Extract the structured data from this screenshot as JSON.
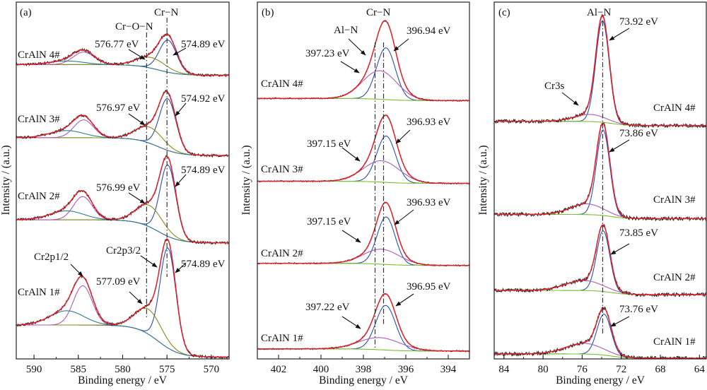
{
  "chart_data": [
    {
      "type": "line",
      "panel_label": "(a)",
      "xlabel": "Binding energy / eV",
      "ylabel": "Intensity / (a.u.)",
      "xlim": [
        592,
        568
      ],
      "x_reversed": true,
      "xticks": [
        590,
        585,
        580,
        575,
        570
      ],
      "xtick_labels": [
        "590",
        "585",
        "580",
        "575",
        "570"
      ],
      "minor_xtick_step": 2.5,
      "ylim": [
        0,
        100
      ],
      "grid": false,
      "reference_lines": [
        575.0,
        577.3
      ],
      "annotations": [
        "Cr−N",
        "Cr−O−N",
        "576.77 eV",
        "574.89 eV",
        "576.97 eV",
        "574.92 eV",
        "576.99 eV",
        "574.89 eV",
        "Cr2p3/2",
        "Cr2p1/2",
        "577.09 eV",
        "574.89 eV"
      ],
      "background": {
        "center": 576,
        "width": 1.2,
        "show": false,
        "color": "#7ac030"
      },
      "colors": {
        "measured": "#1a1a1a",
        "envelope": "#e3202a"
      },
      "spectra": [
        {
          "label": "CrAlN 4#",
          "offset": 79.5,
          "step": 3,
          "components": [
            {
              "center": 574.89,
              "fwhm": 2.3,
              "height": 9.0,
              "color": "#2a4fb0"
            },
            {
              "center": 576.77,
              "fwhm": 3.8,
              "height": 3.0,
              "color": "#8a8a1e"
            },
            {
              "center": 584.4,
              "fwhm": 2.8,
              "height": 3.5,
              "color": "#b05ab8"
            },
            {
              "center": 586.3,
              "fwhm": 4.5,
              "height": 1.0,
              "color": "#2e7f8a"
            }
          ]
        },
        {
          "label": "CrAlN 3#",
          "offset": 57,
          "step": 5,
          "components": [
            {
              "center": 574.92,
              "fwhm": 2.2,
              "height": 14.5,
              "color": "#2a4fb0"
            },
            {
              "center": 576.97,
              "fwhm": 3.6,
              "height": 4.5,
              "color": "#8a8a1e"
            },
            {
              "center": 584.4,
              "fwhm": 2.6,
              "height": 5.0,
              "color": "#b05ab8"
            },
            {
              "center": 586.3,
              "fwhm": 4.5,
              "height": 2.0,
              "color": "#2e7f8a"
            }
          ]
        },
        {
          "label": "CrAlN 2#",
          "offset": 32.5,
          "step": 6.5,
          "components": [
            {
              "center": 574.89,
              "fwhm": 2.1,
              "height": 20.0,
              "color": "#2a4fb0"
            },
            {
              "center": 576.99,
              "fwhm": 3.5,
              "height": 6.0,
              "color": "#8a8a1e"
            },
            {
              "center": 584.5,
              "fwhm": 2.5,
              "height": 6.5,
              "color": "#b05ab8"
            },
            {
              "center": 586.3,
              "fwhm": 4.5,
              "height": 2.5,
              "color": "#2e7f8a"
            }
          ]
        },
        {
          "label": "CrAlN 1#",
          "offset": 0.5,
          "step": 9,
          "components": [
            {
              "center": 574.89,
              "fwhm": 2.1,
              "height": 28.0,
              "color": "#2a4fb0"
            },
            {
              "center": 577.09,
              "fwhm": 3.5,
              "height": 7.0,
              "color": "#8a8a1e"
            },
            {
              "center": 584.5,
              "fwhm": 2.5,
              "height": 11.0,
              "color": "#b05ab8"
            },
            {
              "center": 586.3,
              "fwhm": 4.5,
              "height": 4.0,
              "color": "#2e7f8a"
            }
          ]
        }
      ]
    },
    {
      "type": "line",
      "panel_label": "(b)",
      "xlabel": "Binding energy / eV",
      "ylabel": "Intensity / (a.u.)",
      "xlim": [
        403,
        393
      ],
      "x_reversed": true,
      "xticks": [
        402,
        400,
        398,
        396,
        394
      ],
      "xtick_labels": [
        "402",
        "400",
        "398",
        "396",
        "394"
      ],
      "minor_xtick_step": 1,
      "ylim": [
        0,
        100
      ],
      "grid": false,
      "reference_lines": [
        397.45,
        397.05
      ],
      "annotations": [
        "Cr−N",
        "Al−N",
        "396.94 eV",
        "397.23 eV",
        "396.93 eV",
        "397.15 eV",
        "396.93 eV",
        "397.15 eV",
        "396.95 eV",
        "397.22 eV"
      ],
      "background": {
        "center": 397,
        "width": 0.5,
        "show": true,
        "color": "#7ac030"
      },
      "colors": {
        "measured": "#1a1a1a",
        "envelope": "#e3202a"
      },
      "spectra": [
        {
          "label": "CrAlN 4#",
          "offset": 72.4,
          "step": 0.6,
          "components": [
            {
              "center": 396.94,
              "fwhm": 1.05,
              "height": 14.5,
              "color": "#2a4fb0"
            },
            {
              "center": 397.23,
              "fwhm": 1.9,
              "height": 8.0,
              "color": "#b05ab8"
            }
          ]
        },
        {
          "label": "CrAlN 3#",
          "offset": 49.2,
          "step": 0.6,
          "components": [
            {
              "center": 396.93,
              "fwhm": 1.05,
              "height": 13.0,
              "color": "#2a4fb0"
            },
            {
              "center": 397.15,
              "fwhm": 2.0,
              "height": 6.0,
              "color": "#b05ab8"
            }
          ]
        },
        {
          "label": "CrAlN 2#",
          "offset": 26.2,
          "step": 0.6,
          "components": [
            {
              "center": 396.93,
              "fwhm": 1.0,
              "height": 13.3,
              "color": "#2a4fb0"
            },
            {
              "center": 397.15,
              "fwhm": 2.0,
              "height": 4.2,
              "color": "#b05ab8"
            }
          ]
        },
        {
          "label": "CrAlN 1#",
          "offset": 2.2,
          "step": 0.6,
          "components": [
            {
              "center": 396.95,
              "fwhm": 1.1,
              "height": 12.5,
              "color": "#2a4fb0"
            },
            {
              "center": 397.22,
              "fwhm": 2.3,
              "height": 3.4,
              "color": "#b05ab8"
            }
          ]
        }
      ]
    },
    {
      "type": "line",
      "panel_label": "(c)",
      "xlabel": "Binding energy / eV",
      "ylabel": "Intensity / (a.u.)",
      "xlim": [
        85,
        63.3
      ],
      "x_reversed": true,
      "xticks": [
        84,
        80,
        76,
        72,
        68,
        64
      ],
      "xtick_labels": [
        "84",
        "80",
        "76",
        "72",
        "68",
        "64"
      ],
      "minor_xtick_step": 2,
      "ylim": [
        0,
        100
      ],
      "grid": false,
      "reference_lines": [
        73.9
      ],
      "annotations": [
        "Al−N",
        "73.92 eV",
        "Cr3s",
        "73.86 eV",
        "73.85 eV",
        "73.76 eV"
      ],
      "background": {
        "center": 73,
        "width": 0.8,
        "show": true,
        "color": "#7ac030"
      },
      "colors": {
        "measured": "#1a1a1a",
        "envelope": "#e3202a"
      },
      "spectra": [
        {
          "label": "CrAlN 4#",
          "offset": 65.4,
          "step": 1.2,
          "components": [
            {
              "center": 73.92,
              "fwhm": 1.6,
              "height": 28.5,
              "color": "#2a4fb0"
            },
            {
              "center": 75.2,
              "fwhm": 3.8,
              "height": 2.0,
              "color": "#b05ab8"
            }
          ]
        },
        {
          "label": "CrAlN 3#",
          "offset": 39.3,
          "step": 1.2,
          "components": [
            {
              "center": 73.86,
              "fwhm": 1.6,
              "height": 24.0,
              "color": "#2a4fb0"
            },
            {
              "center": 75.5,
              "fwhm": 4.0,
              "height": 3.0,
              "color": "#b05ab8"
            }
          ]
        },
        {
          "label": "CrAlN 2#",
          "offset": 18.0,
          "step": 1.2,
          "components": [
            {
              "center": 73.85,
              "fwhm": 1.6,
              "height": 17.0,
              "color": "#2a4fb0"
            },
            {
              "center": 75.8,
              "fwhm": 4.5,
              "height": 2.8,
              "color": "#b05ab8"
            }
          ]
        },
        {
          "label": "CrAlN 1#",
          "offset": 0.2,
          "step": 1.2,
          "components": [
            {
              "center": 73.76,
              "fwhm": 1.7,
              "height": 11.5,
              "color": "#2a4fb0"
            },
            {
              "center": 75.8,
              "fwhm": 4.5,
              "height": 3.0,
              "color": "#b05ab8"
            }
          ]
        }
      ]
    }
  ]
}
